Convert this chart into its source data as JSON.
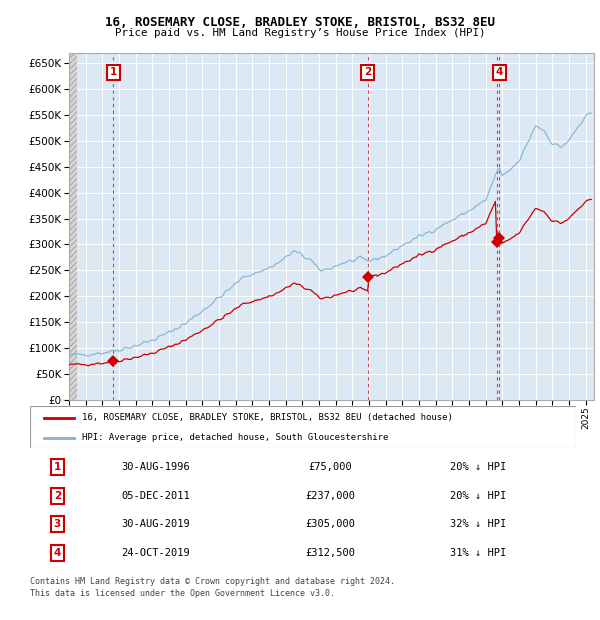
{
  "title": "16, ROSEMARY CLOSE, BRADLEY STOKE, BRISTOL, BS32 8EU",
  "subtitle": "Price paid vs. HM Land Registry’s House Price Index (HPI)",
  "legend_property": "16, ROSEMARY CLOSE, BRADLEY STOKE, BRISTOL, BS32 8EU (detached house)",
  "legend_hpi": "HPI: Average price, detached house, South Gloucestershire",
  "footer1": "Contains HM Land Registry data © Crown copyright and database right 2024.",
  "footer2": "This data is licensed under the Open Government Licence v3.0.",
  "ylim": [
    0,
    670000
  ],
  "yticks": [
    0,
    50000,
    100000,
    150000,
    200000,
    250000,
    300000,
    350000,
    400000,
    450000,
    500000,
    550000,
    600000,
    650000
  ],
  "ytick_labels": [
    "£0",
    "£50K",
    "£100K",
    "£150K",
    "£200K",
    "£250K",
    "£300K",
    "£350K",
    "£400K",
    "£450K",
    "£500K",
    "£550K",
    "£600K",
    "£650K"
  ],
  "xlim_start": 1994.0,
  "xlim_end": 2025.5,
  "transactions": [
    {
      "num": 1,
      "date_label": "30-AUG-1996",
      "year": 1996.66,
      "price": 75000,
      "hpi_pct": "20% ↓ HPI",
      "show_box": true
    },
    {
      "num": 2,
      "date_label": "05-DEC-2011",
      "year": 2011.92,
      "price": 237000,
      "hpi_pct": "20% ↓ HPI",
      "show_box": true
    },
    {
      "num": 3,
      "date_label": "30-AUG-2019",
      "year": 2019.66,
      "price": 305000,
      "hpi_pct": "32% ↓ HPI",
      "show_box": false
    },
    {
      "num": 4,
      "date_label": "24-OCT-2019",
      "year": 2019.82,
      "price": 312500,
      "hpi_pct": "31% ↓ HPI",
      "show_box": true
    }
  ],
  "property_color": "#cc0000",
  "hpi_color": "#7fb3d3",
  "chart_bg": "#dce9f5",
  "grid_color": "#ffffff"
}
